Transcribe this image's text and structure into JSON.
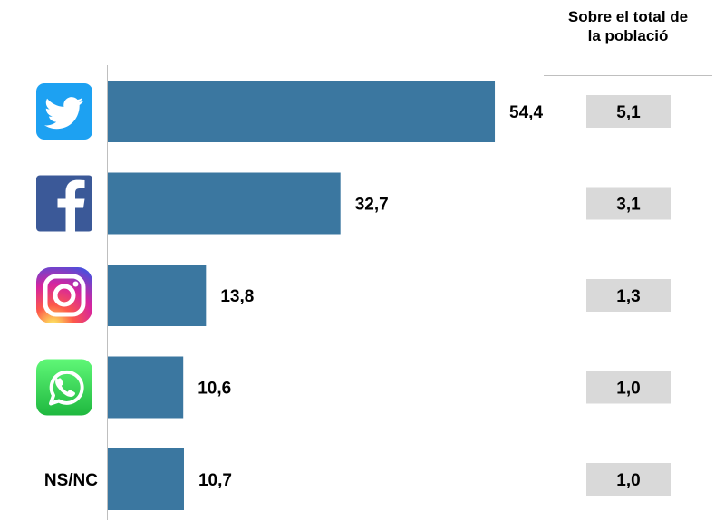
{
  "chart_data": {
    "type": "bar",
    "orientation": "horizontal",
    "categories": [
      "Twitter",
      "Facebook",
      "Instagram",
      "WhatsApp",
      "NS/NC"
    ],
    "category_display": [
      "twitter-logo",
      "facebook-logo",
      "instagram-logo",
      "whatsapp-logo",
      "NS/NC"
    ],
    "values": [
      54.4,
      32.7,
      13.8,
      10.6,
      10.7
    ],
    "value_labels": [
      "54,4",
      "32,7",
      "13,8",
      "10,6",
      "10,7"
    ],
    "secondary_header": "Sobre el total de la població",
    "secondary_values": [
      5.1,
      3.1,
      1.3,
      1.0,
      1.0
    ],
    "secondary_labels": [
      "5,1",
      "3,1",
      "1,3",
      "1,0",
      "1,0"
    ],
    "bar_color": "#3b77a0",
    "secondary_box_color": "#d9d9d9",
    "xlim": [
      0,
      60
    ],
    "grid": false
  }
}
